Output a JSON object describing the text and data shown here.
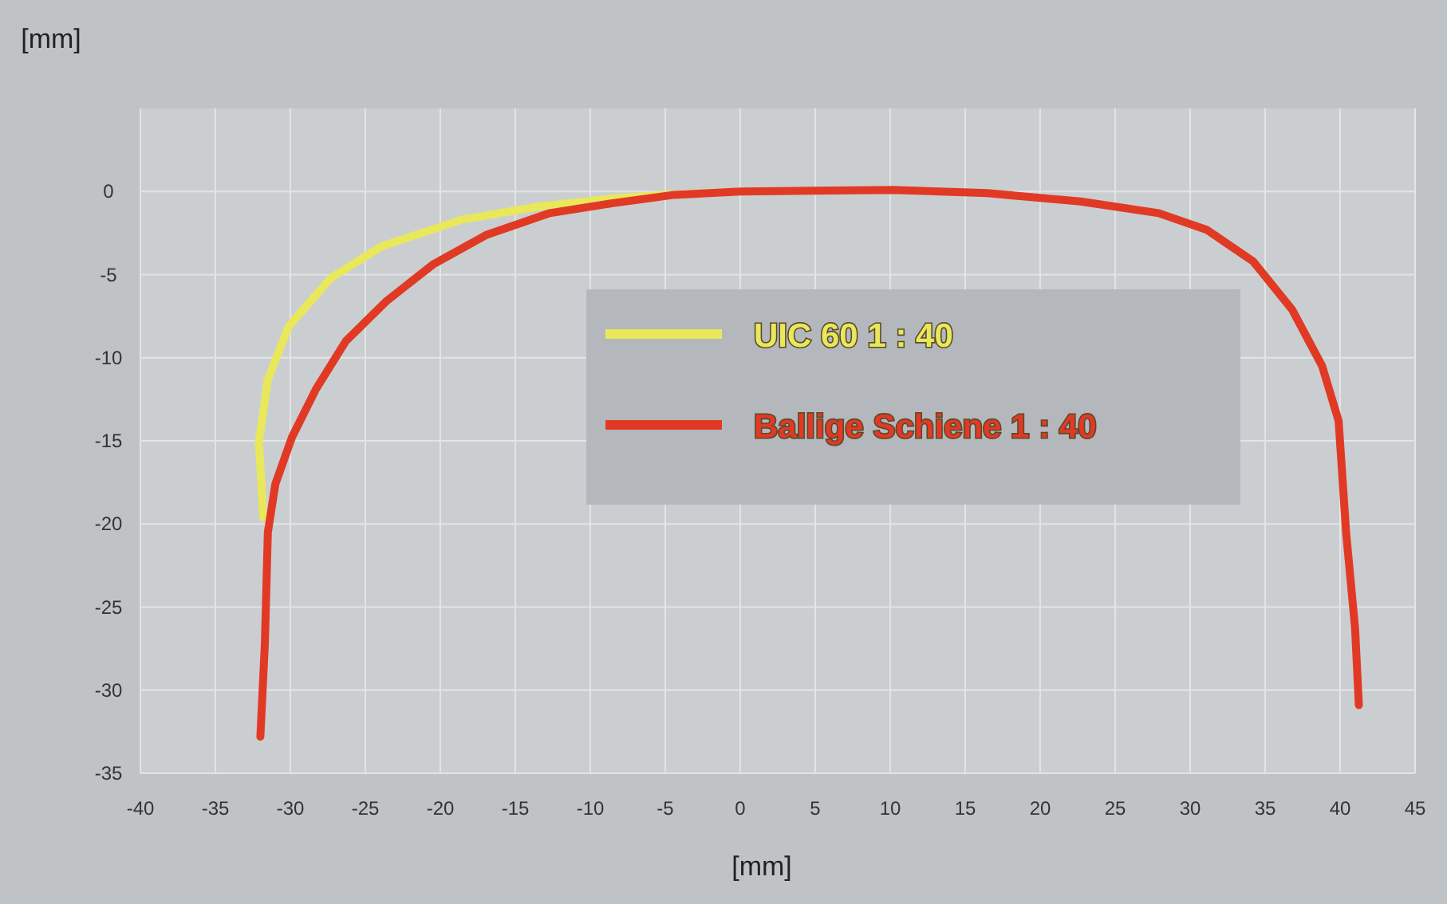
{
  "chart_data": {
    "type": "line",
    "xlabel": "[mm]",
    "ylabel": "[mm]",
    "xlim": [
      -40,
      45
    ],
    "ylim": [
      -35,
      5
    ],
    "xticks": [
      -40,
      -35,
      -30,
      -25,
      -20,
      -15,
      -10,
      -5,
      0,
      5,
      10,
      15,
      20,
      25,
      30,
      35,
      40,
      45
    ],
    "yticks": [
      -35,
      -30,
      -25,
      -20,
      -15,
      -10,
      -5,
      0
    ],
    "grid": true,
    "legend": "center",
    "line_style": "solid",
    "marker": "none",
    "series": [
      {
        "name": "UIC 60 1 : 40",
        "color": "#e8e85a",
        "x": [
          -31.8,
          -32.1,
          -31.5,
          -30.1,
          -27.3,
          -23.9,
          -18.6,
          -13.4,
          -8.2,
          -5,
          0
        ],
        "values": [
          -19.6,
          -15.1,
          -11.3,
          -8.1,
          -5.2,
          -3.3,
          -1.7,
          -0.9,
          -0.4,
          -0.2,
          0
        ]
      },
      {
        "name": "Ballige Schiene 1 : 40",
        "color": "#e03a25",
        "x": [
          -32.0,
          -31.7,
          -31.5,
          -31.0,
          -29.9,
          -28.3,
          -26.3,
          -23.6,
          -20.5,
          -16.9,
          -12.7,
          -8.5,
          -4.4,
          0,
          10.2,
          16.5,
          22.7,
          27.9,
          31.1,
          34.2,
          36.8,
          38.8,
          39.9,
          40.4,
          41.0,
          41.25
        ],
        "values": [
          -32.8,
          -27.2,
          -20.5,
          -17.6,
          -14.8,
          -11.9,
          -9.0,
          -6.6,
          -4.4,
          -2.6,
          -1.3,
          -0.7,
          -0.2,
          0,
          0.1,
          -0.1,
          -0.6,
          -1.3,
          -2.3,
          -4.2,
          -7.1,
          -10.5,
          -13.8,
          -20.5,
          -26.3,
          -30.9
        ]
      }
    ]
  }
}
